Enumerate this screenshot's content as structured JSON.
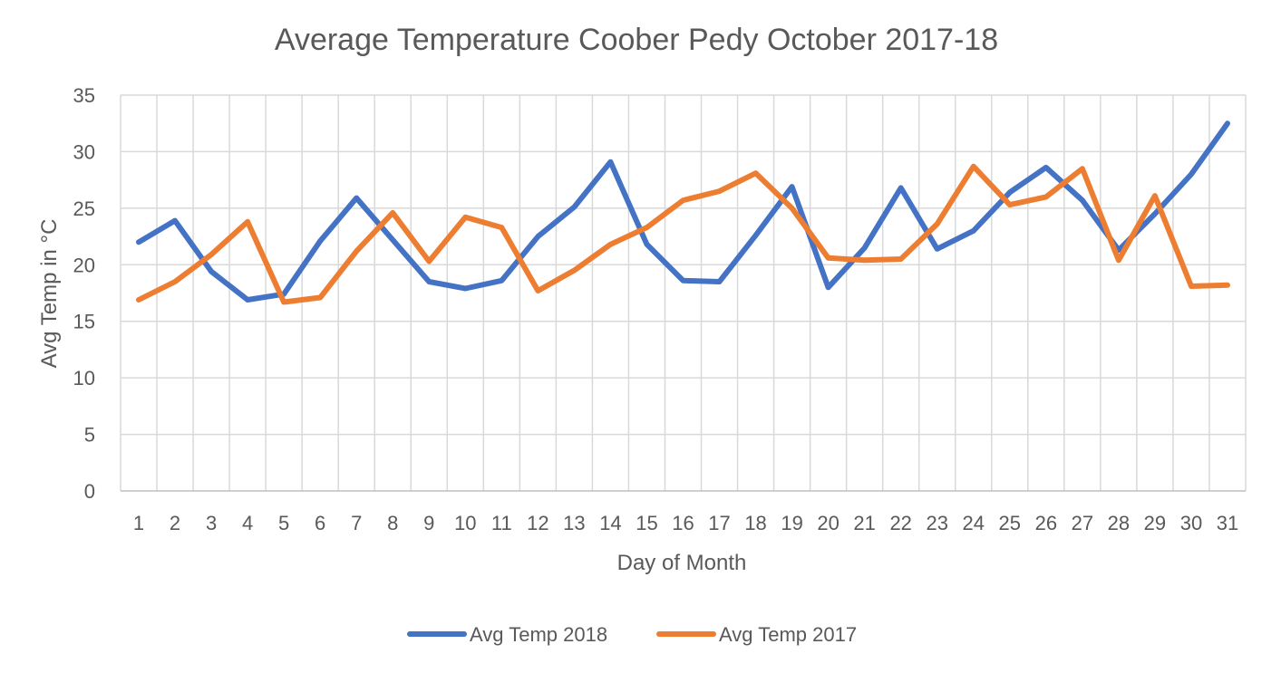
{
  "chart_data": {
    "type": "line",
    "title": "Average Temperature Coober Pedy October 2017-18",
    "xlabel": "Day of Month",
    "ylabel": "Avg Temp in °C",
    "ylim": [
      0,
      35
    ],
    "yticks": [
      0,
      5,
      10,
      15,
      20,
      25,
      30,
      35
    ],
    "grid": true,
    "legend_position": "bottom",
    "categories": [
      "1",
      "2",
      "3",
      "4",
      "5",
      "6",
      "7",
      "8",
      "9",
      "10",
      "11",
      "12",
      "13",
      "14",
      "15",
      "16",
      "17",
      "18",
      "19",
      "20",
      "21",
      "22",
      "23",
      "24",
      "25",
      "26",
      "27",
      "28",
      "29",
      "30",
      "31"
    ],
    "series": [
      {
        "name": "Avg Temp 2018",
        "color": "#4472C4",
        "values": [
          22.0,
          23.9,
          19.4,
          16.9,
          17.4,
          22.1,
          25.9,
          22.2,
          18.5,
          17.9,
          18.6,
          22.5,
          25.1,
          29.1,
          21.8,
          18.6,
          18.5,
          22.6,
          26.9,
          18.0,
          21.5,
          26.8,
          21.4,
          23.0,
          26.4,
          28.6,
          25.7,
          21.3,
          24.5,
          28.0,
          32.5
        ]
      },
      {
        "name": "Avg Temp 2017",
        "color": "#ED7D31",
        "values": [
          16.9,
          18.5,
          20.9,
          23.8,
          16.7,
          17.1,
          21.2,
          24.6,
          20.3,
          24.2,
          23.3,
          17.7,
          19.5,
          21.8,
          23.3,
          25.7,
          26.5,
          28.1,
          25.0,
          20.6,
          20.4,
          20.5,
          23.6,
          28.7,
          25.3,
          26.0,
          28.5,
          20.4,
          26.1,
          18.1,
          18.2
        ]
      }
    ]
  }
}
